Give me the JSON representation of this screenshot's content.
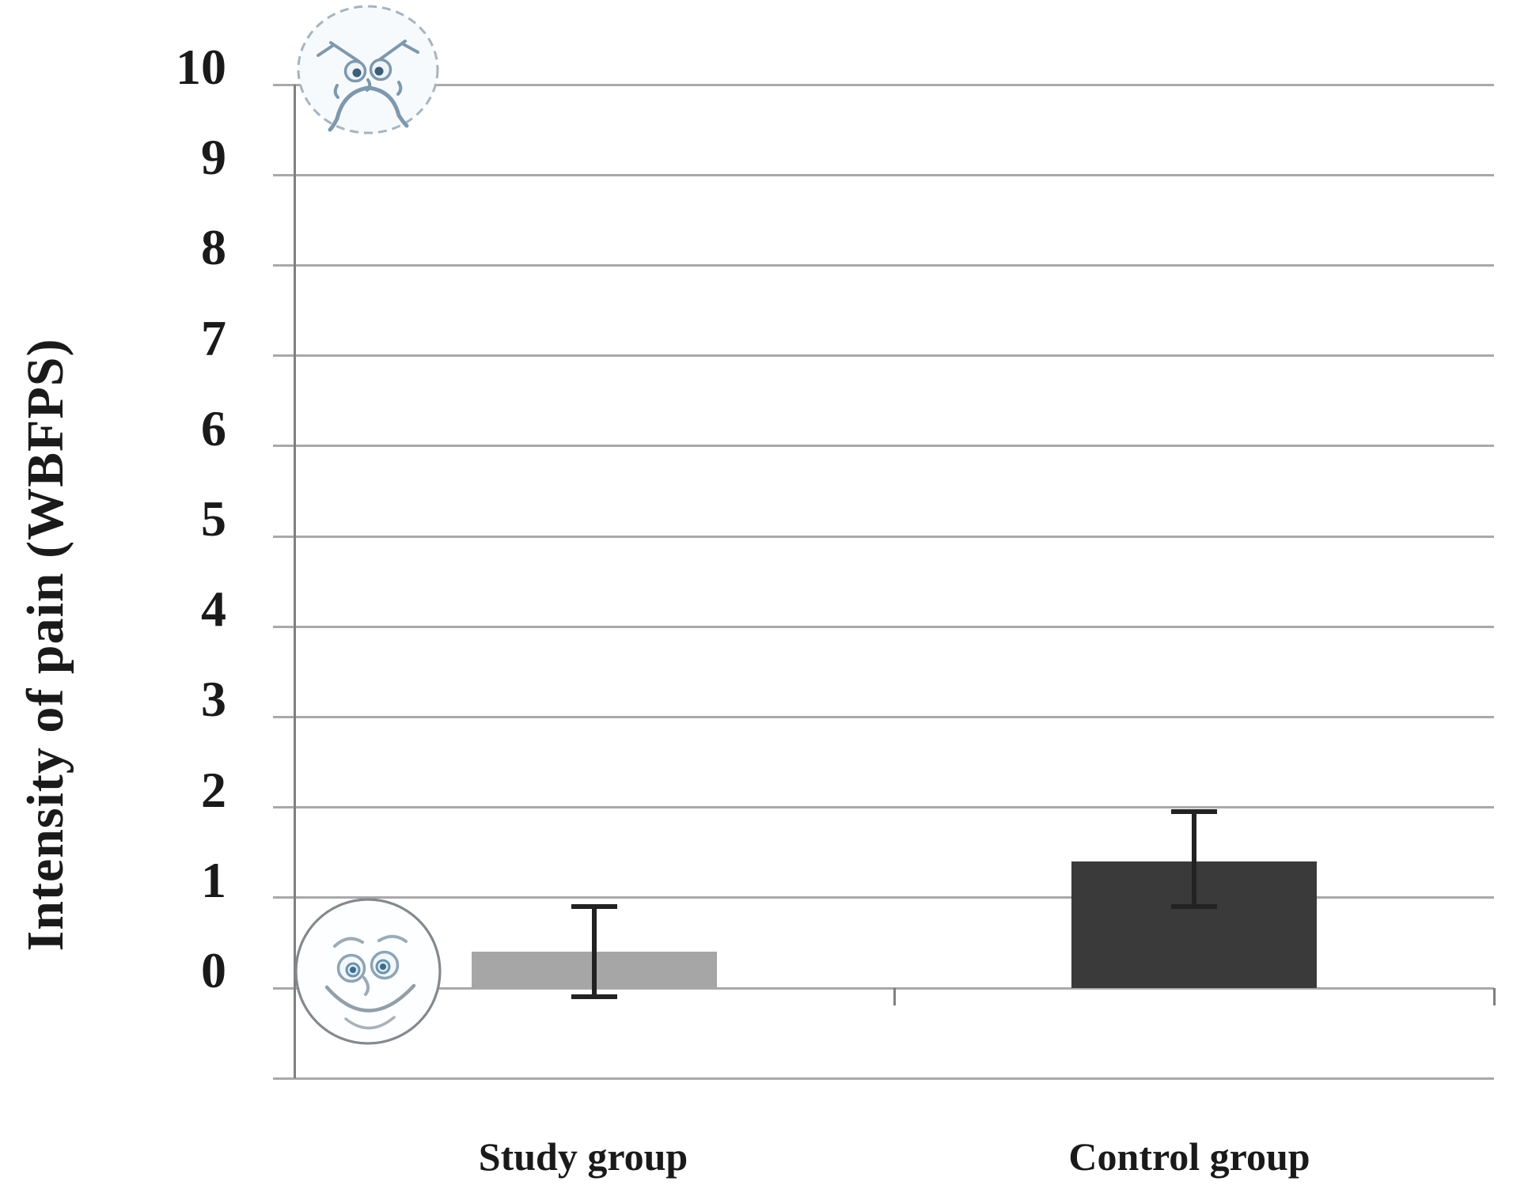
{
  "chart_data": {
    "type": "bar",
    "title": "",
    "ylabel": "Intensity of pain (WBFPS)",
    "xlabel": "",
    "categories": [
      "Study group",
      "Control group"
    ],
    "series": [
      {
        "name": "Intensity of pain (WBFPS)",
        "values": [
          0.4,
          1.4
        ],
        "error_low": [
          -0.1,
          0.9
        ],
        "error_high": [
          0.9,
          1.95
        ],
        "bar_colors": [
          "#a6a6a6",
          "#3a3a3a"
        ]
      }
    ],
    "ylim": [
      -1,
      10
    ],
    "yticks": [
      0,
      1,
      2,
      3,
      4,
      5,
      6,
      7,
      8,
      9,
      10
    ],
    "grid": true,
    "legend_position": "none",
    "annotations": [
      {
        "id": "pain-face-icon",
        "desc": "crying 'hurts worst' face drawing at top of scale near 10"
      },
      {
        "id": "smiley-face-icon",
        "desc": "smiling 'no hurt' face drawing at bottom of scale near 0"
      }
    ]
  },
  "axis_style": {
    "gridline_color": "#a9a9a9",
    "axis_color": "#7f7f7f",
    "error_bar_color": "#222222",
    "text_color": "#1a1a1a"
  }
}
